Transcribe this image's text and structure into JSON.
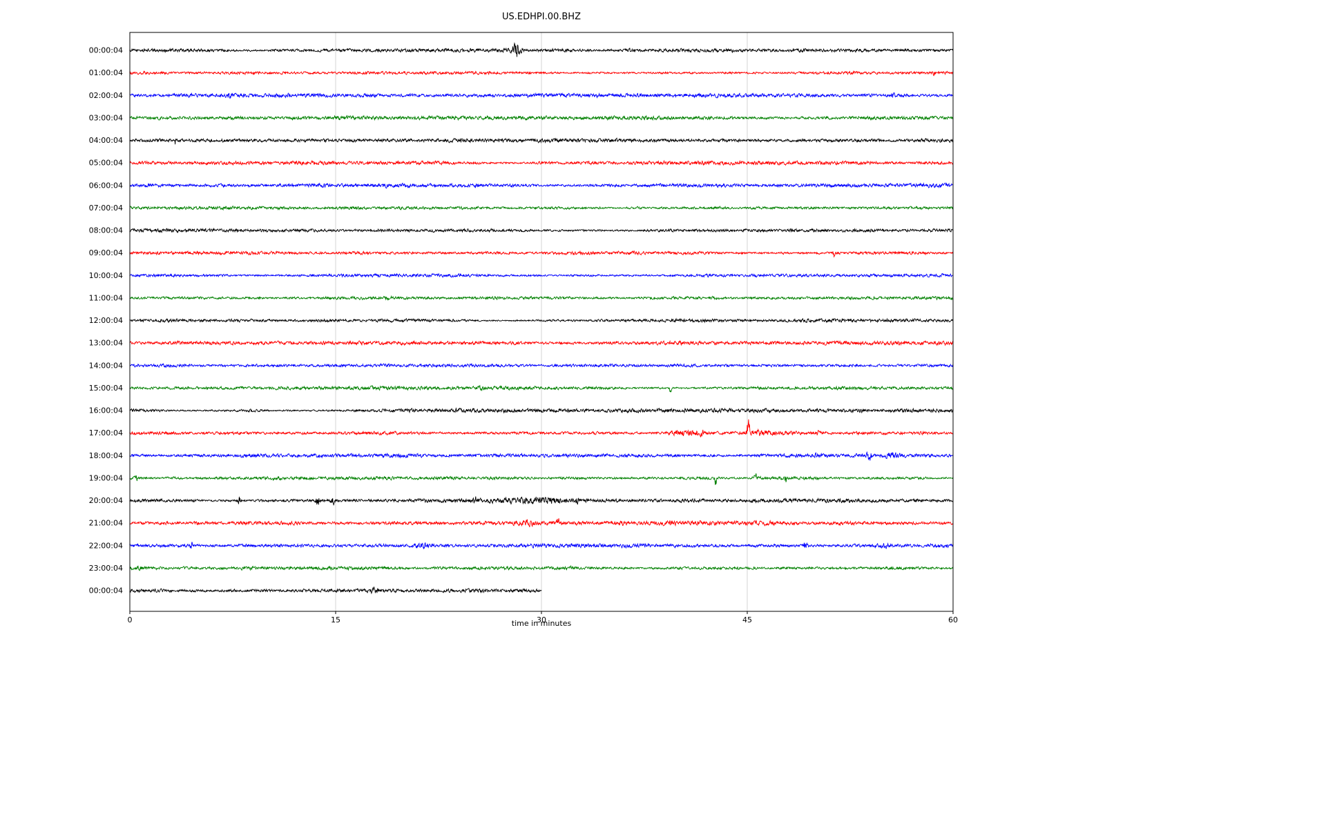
{
  "chart_data": {
    "type": "line",
    "subtype": "seismogram-helicorder-dayplot",
    "title": "US.EDHPI.00.BHZ",
    "xlabel": "time in minutes",
    "x_range": [
      0,
      60
    ],
    "x_ticks": [
      0,
      15,
      30,
      45,
      60
    ],
    "x_gridlines": [
      15,
      30,
      45
    ],
    "grid": "vertical-only",
    "legend": "none",
    "colors": {
      "background": "#ffffff",
      "grid": "#c9c9c9",
      "axis": "#000000",
      "trace_cycle": [
        "#000000",
        "#ff0000",
        "#0000ff",
        "#008000"
      ]
    },
    "rows": [
      {
        "label": "00:00:04",
        "color": "#000000",
        "duration": 60,
        "noise": 1.0,
        "events": [
          {
            "t": 28.2,
            "w": 0.22,
            "amp": 9
          },
          {
            "t": 36.5,
            "w": 0.15,
            "amp": 1.5
          }
        ]
      },
      {
        "label": "01:00:04",
        "color": "#ff0000",
        "duration": 60,
        "noise": 1.0,
        "events": [
          {
            "t": 58.6,
            "w": 0.08,
            "amp": 2.5
          }
        ]
      },
      {
        "label": "02:00:04",
        "color": "#0000ff",
        "duration": 60,
        "noise": 1.0,
        "events": [
          {
            "t": 7.2,
            "w": 0.12,
            "amp": 2
          },
          {
            "t": 55.6,
            "w": 0.08,
            "amp": 3.5
          }
        ]
      },
      {
        "label": "03:00:04",
        "color": "#008000",
        "duration": 60,
        "noise": 1.0,
        "events": []
      },
      {
        "label": "04:00:04",
        "color": "#000000",
        "duration": 60,
        "noise": 1.0,
        "events": [
          {
            "t": 3.3,
            "w": 0.05,
            "amp": 4.5,
            "bias": -1
          }
        ]
      },
      {
        "label": "05:00:04",
        "color": "#ff0000",
        "duration": 60,
        "noise": 1.05,
        "events": []
      },
      {
        "label": "06:00:04",
        "color": "#0000ff",
        "duration": 60,
        "noise": 1.0,
        "events": [
          {
            "t": 25.3,
            "w": 0.1,
            "amp": 2
          }
        ]
      },
      {
        "label": "07:00:04",
        "color": "#008000",
        "duration": 60,
        "noise": 1.0,
        "events": []
      },
      {
        "label": "08:00:04",
        "color": "#000000",
        "duration": 60,
        "noise": 1.1,
        "events": []
      },
      {
        "label": "09:00:04",
        "color": "#ff0000",
        "duration": 60,
        "noise": 1.0,
        "events": [
          {
            "t": 51.3,
            "w": 0.05,
            "amp": 3.5,
            "bias": -1
          }
        ]
      },
      {
        "label": "10:00:04",
        "color": "#0000ff",
        "duration": 60,
        "noise": 1.0,
        "events": []
      },
      {
        "label": "11:00:04",
        "color": "#008000",
        "duration": 60,
        "noise": 0.9,
        "events": []
      },
      {
        "label": "12:00:04",
        "color": "#000000",
        "duration": 60,
        "noise": 1.0,
        "events": []
      },
      {
        "label": "13:00:04",
        "color": "#ff0000",
        "duration": 60,
        "noise": 1.1,
        "events": []
      },
      {
        "label": "14:00:04",
        "color": "#0000ff",
        "duration": 60,
        "noise": 1.0,
        "events": []
      },
      {
        "label": "15:00:04",
        "color": "#008000",
        "duration": 60,
        "noise": 0.9,
        "events": [
          {
            "t": 39.4,
            "w": 0.05,
            "amp": 4,
            "bias": -1
          }
        ]
      },
      {
        "label": "16:00:04",
        "color": "#000000",
        "duration": 60,
        "noise": 1.1,
        "events": [
          {
            "t": 53.5,
            "w": 0.2,
            "amp": 1.5
          }
        ]
      },
      {
        "label": "17:00:04",
        "color": "#ff0000",
        "duration": 60,
        "noise": 1.05,
        "events": [
          {
            "t": 40.3,
            "w": 0.7,
            "amp": 3
          },
          {
            "t": 41.6,
            "w": 0.35,
            "amp": 2.5
          },
          {
            "t": 45.05,
            "w": 0.07,
            "amp": 16,
            "bias": 1
          },
          {
            "t": 45.7,
            "w": 0.5,
            "amp": 2.5
          },
          {
            "t": 47.2,
            "w": 1.2,
            "amp": 1.2
          },
          {
            "t": 50.1,
            "w": 0.15,
            "amp": 2.5
          }
        ]
      },
      {
        "label": "18:00:04",
        "color": "#0000ff",
        "duration": 60,
        "noise": 1.05,
        "events": [
          {
            "t": 34.8,
            "w": 1.5,
            "amp": 0.7
          },
          {
            "t": 50.3,
            "w": 0.5,
            "amp": 1.5
          },
          {
            "t": 53.9,
            "w": 0.12,
            "amp": 6
          },
          {
            "t": 55.5,
            "w": 0.4,
            "amp": 3
          }
        ]
      },
      {
        "label": "19:00:04",
        "color": "#008000",
        "duration": 60,
        "noise": 1.0,
        "events": [
          {
            "t": 0.5,
            "w": 0.08,
            "amp": 3.5
          },
          {
            "t": 10.6,
            "w": 0.3,
            "amp": 1.5
          },
          {
            "t": 42.7,
            "w": 0.05,
            "amp": 5.5,
            "bias": -1
          },
          {
            "t": 45.6,
            "w": 0.07,
            "amp": 4,
            "bias": 1
          },
          {
            "t": 47.8,
            "w": 0.05,
            "amp": 5,
            "bias": -1
          }
        ]
      },
      {
        "label": "20:00:04",
        "color": "#000000",
        "duration": 60,
        "noise": 1.1,
        "events": [
          {
            "t": 8.0,
            "w": 0.07,
            "amp": 6
          },
          {
            "t": 13.7,
            "w": 0.1,
            "amp": 7
          },
          {
            "t": 14.8,
            "w": 0.09,
            "amp": 4.5
          },
          {
            "t": 25.2,
            "w": 0.15,
            "amp": 2.5
          },
          {
            "t": 28.6,
            "w": 1.4,
            "amp": 2
          },
          {
            "t": 30.6,
            "w": 0.9,
            "amp": 2.2
          },
          {
            "t": 32.6,
            "w": 0.15,
            "amp": 3
          },
          {
            "t": 57.3,
            "w": 0.1,
            "amp": 2.5
          }
        ]
      },
      {
        "label": "21:00:04",
        "color": "#ff0000",
        "duration": 60,
        "noise": 1.05,
        "events": [
          {
            "t": 28.9,
            "w": 0.45,
            "amp": 3.5
          },
          {
            "t": 31.2,
            "w": 0.05,
            "amp": 8,
            "bias": 1
          },
          {
            "t": 36.0,
            "w": 0.3,
            "amp": 1.5
          },
          {
            "t": 44.0,
            "w": 8.0,
            "amp": 0.7
          }
        ]
      },
      {
        "label": "22:00:04",
        "color": "#0000ff",
        "duration": 60,
        "noise": 1.05,
        "events": [
          {
            "t": 4.5,
            "w": 0.07,
            "amp": 4
          },
          {
            "t": 21.4,
            "w": 0.45,
            "amp": 3.2
          },
          {
            "t": 49.2,
            "w": 0.1,
            "amp": 4.5
          },
          {
            "t": 55.0,
            "w": 0.2,
            "amp": 1.5
          }
        ]
      },
      {
        "label": "23:00:04",
        "color": "#008000",
        "duration": 60,
        "noise": 1.0,
        "events": [
          {
            "t": 0.8,
            "w": 0.3,
            "amp": 1.2
          },
          {
            "t": 32.0,
            "w": 0.3,
            "amp": 1.0
          }
        ]
      },
      {
        "label": "00:00:04",
        "color": "#000000",
        "duration": 30,
        "noise": 1.0,
        "events": [
          {
            "t": 17.8,
            "w": 0.22,
            "amp": 3
          }
        ]
      }
    ]
  }
}
